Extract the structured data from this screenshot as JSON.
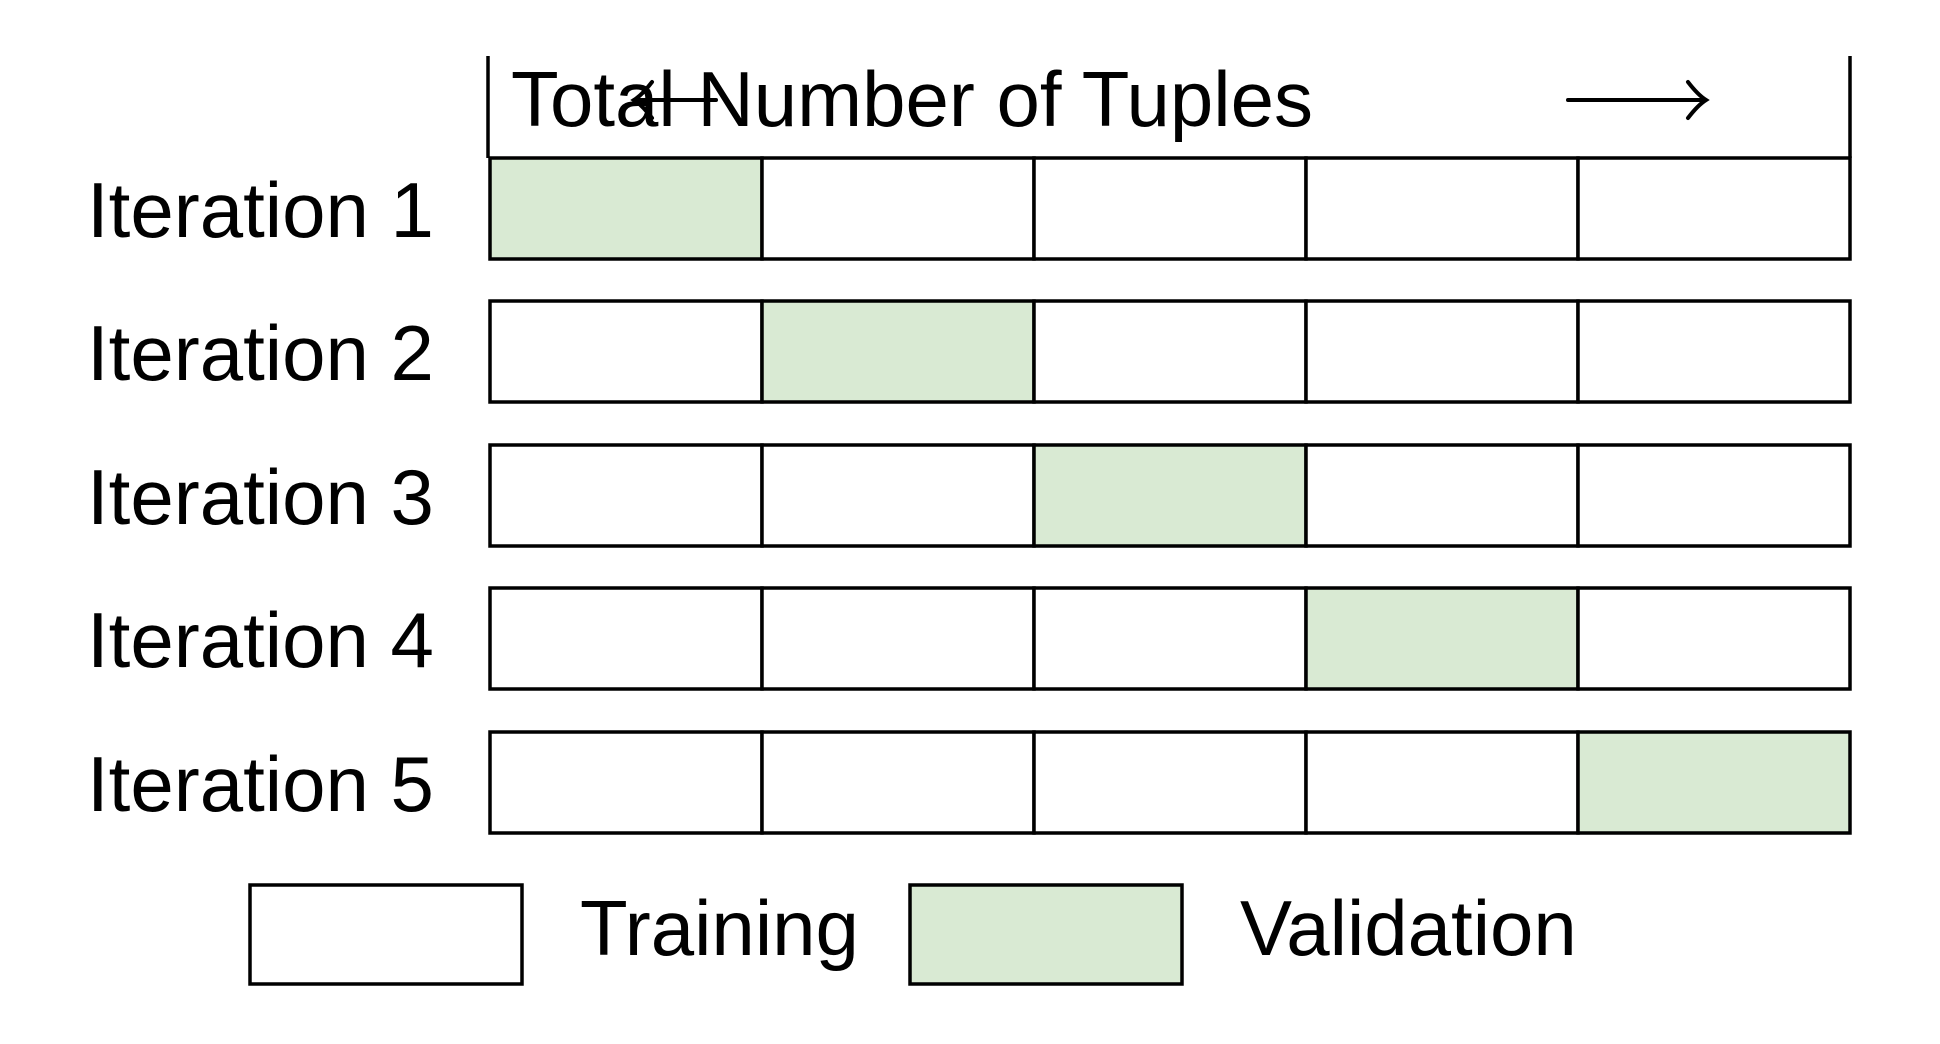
{
  "header": {
    "text": "Total Number of Tuples"
  },
  "folds": 5,
  "iterations": [
    {
      "label": "Iteration 1",
      "validation_fold": 1
    },
    {
      "label": "Iteration 2",
      "validation_fold": 2
    },
    {
      "label": "Iteration 3",
      "validation_fold": 3
    },
    {
      "label": "Iteration 4",
      "validation_fold": 4
    },
    {
      "label": "Iteration 5",
      "validation_fold": 5
    }
  ],
  "legend": {
    "training": "Training",
    "validation": "Validation"
  },
  "colors": {
    "training": "#ffffff",
    "validation": "#d9ead3",
    "stroke": "#000000"
  }
}
